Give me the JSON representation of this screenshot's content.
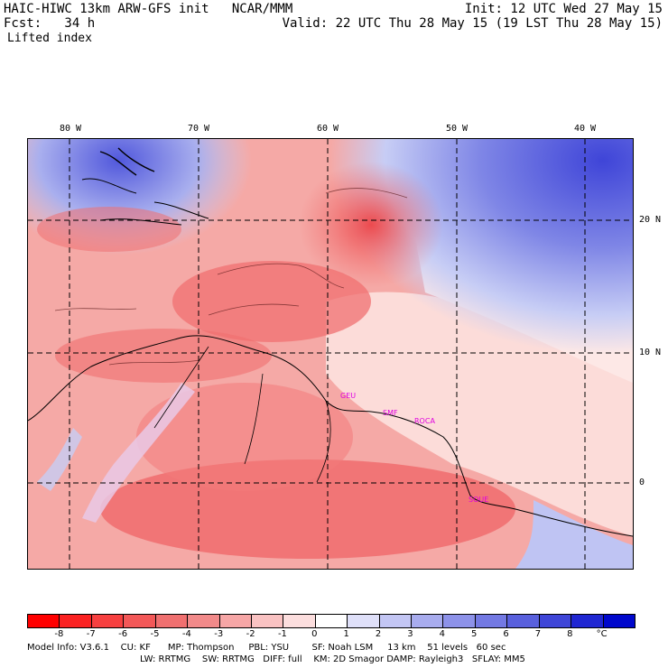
{
  "header": {
    "title": "HAIC-HIWC 13km ARW-GFS init   NCAR/MMM",
    "init": "Init: 12 UTC Wed 27 May 15",
    "fcst_label": "Fcst:   34 h",
    "valid": "Valid: 22 UTC Thu 28 May 15 (19 LST Thu 28 May 15)",
    "field": "Lifted index"
  },
  "map": {
    "lon_labels": [
      "80 W",
      "70 W",
      "60 W",
      "50 W",
      "40 W"
    ],
    "lat_labels": [
      "20 N",
      "10 N",
      "0"
    ],
    "stations": [
      "GEU",
      "SMF",
      "ROCA",
      "SOUE"
    ],
    "colors": {
      "strong_neg": "#e8333a",
      "mid_neg": "#f26a6a",
      "weak_neg": "#f9b0b0",
      "neutral": "#fde8e6",
      "weak_pos": "#c7cdf5",
      "mid_pos": "#7f86e6",
      "strong_pos": "#3f45d8",
      "station": "#e000e0"
    }
  },
  "colorbar": {
    "colors": [
      "#ff0000",
      "#fb2222",
      "#f74040",
      "#f35858",
      "#f07070",
      "#f28a8a",
      "#f6a6a6",
      "#f9c2c2",
      "#fcdede",
      "#ffffff",
      "#dfe0f9",
      "#c3c6f4",
      "#a8acee",
      "#8d92e9",
      "#7379e3",
      "#5960dd",
      "#3f46d8",
      "#2027d2",
      "#0008cc"
    ],
    "labels": [
      "-8",
      "-7",
      "-6",
      "-5",
      "-4",
      "-3",
      "-2",
      "-1",
      "0",
      "1",
      "2",
      "3",
      "4",
      "5",
      "6",
      "7",
      "8",
      "°C"
    ]
  },
  "footer": {
    "line1": "Model Info: V3.6.1    CU: KF      MP: Thompson     PBL: YSU        SF: Noah LSM     13 km    51 levels   60 sec",
    "line2": "LW: RRTMG    SW: RRTMG   DIFF: full    KM: 2D Smagor DAMP: Rayleigh3   SFLAY: MM5"
  }
}
